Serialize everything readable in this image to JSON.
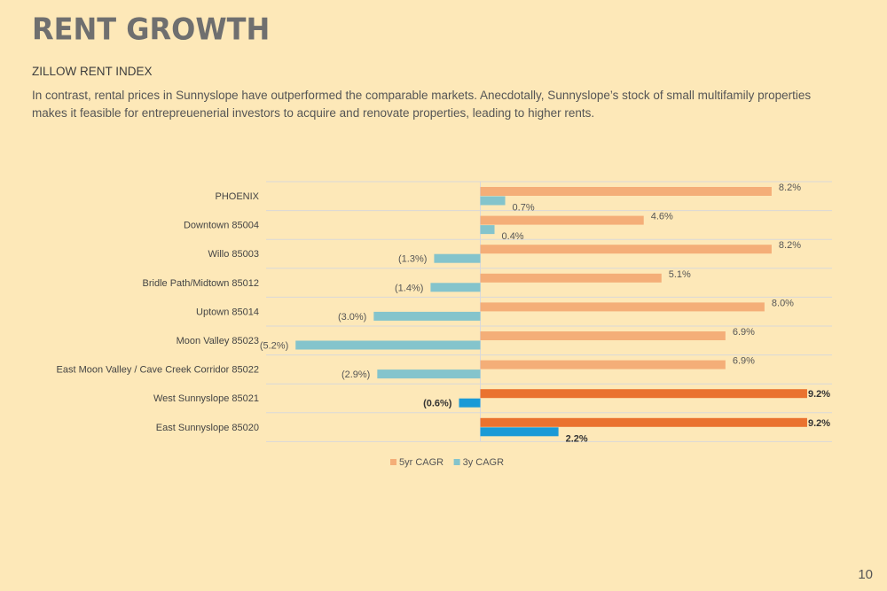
{
  "page": {
    "title": "RENT GROWTH",
    "subtitle": "ZILLOW RENT INDEX",
    "description": "In contrast, rental prices in Sunnyslope have outperformed the comparable markets. Anecdotally, Sunnyslope’s stock of small multifamily properties makes it feasible for entrepreuenerial investors to acquire and renovate properties, leading to higher rents.",
    "page_number": "10"
  },
  "chart_data": {
    "type": "bar",
    "orientation": "horizontal",
    "categories": [
      "PHOENIX",
      "Downtown 85004",
      "Willo 85003",
      "Bridle Path/Midtown 85012",
      "Uptown 85014",
      "Moon Valley 85023",
      "East Moon Valley / Cave Creek Corridor 85022",
      "West Sunnyslope 85021",
      "East Sunnyslope 85020"
    ],
    "series": [
      {
        "name": "5yr CAGR",
        "color": "#f4ae78",
        "highlight_color": "#ea722f",
        "values": [
          8.2,
          4.6,
          8.2,
          5.1,
          8.0,
          6.9,
          6.9,
          9.2,
          9.2
        ],
        "labels": [
          "8.2%",
          "4.6%",
          "8.2%",
          "5.1%",
          "8.0%",
          "6.9%",
          "6.9%",
          "9.2%",
          "9.2%"
        ]
      },
      {
        "name": "3y CAGR",
        "color": "#84c4cc",
        "highlight_color": "#1a9ad6",
        "values": [
          0.7,
          0.4,
          -1.3,
          -1.4,
          -3.0,
          -5.2,
          -2.9,
          -0.6,
          2.2
        ],
        "labels": [
          "0.7%",
          "0.4%",
          "(1.3%)",
          "(1.4%)",
          "(3.0%)",
          "(5.2%)",
          "(2.9%)",
          "(0.6%)",
          "2.2%"
        ]
      }
    ],
    "highlighted_categories": [
      "West Sunnyslope 85021",
      "East Sunnyslope 85020"
    ],
    "xlim": [
      -5.2,
      10
    ],
    "legend_position": "bottom",
    "grid": "horizontal row separators"
  }
}
